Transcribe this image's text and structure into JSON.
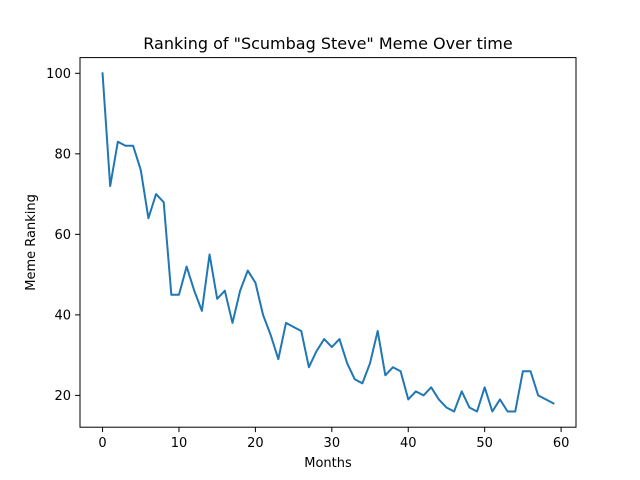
{
  "chart_data": {
    "type": "line",
    "title": "Ranking of \"Scumbag Steve\" Meme Over time",
    "xlabel": "Months",
    "ylabel": "Meme Ranking",
    "xlim": [
      -2.95,
      61.95
    ],
    "ylim": [
      12.1,
      103.9
    ],
    "xticks": [
      0,
      10,
      20,
      30,
      40,
      50,
      60
    ],
    "yticks": [
      20,
      40,
      60,
      80,
      100
    ],
    "grid": false,
    "series": [
      {
        "color": "#1f77b4",
        "x": [
          0,
          1,
          2,
          3,
          4,
          5,
          6,
          7,
          8,
          9,
          10,
          11,
          12,
          13,
          14,
          15,
          16,
          17,
          18,
          19,
          20,
          21,
          22,
          23,
          24,
          25,
          26,
          27,
          28,
          29,
          30,
          31,
          32,
          33,
          34,
          35,
          36,
          37,
          38,
          39,
          40,
          41,
          42,
          43,
          44,
          45,
          46,
          47,
          48,
          49,
          50,
          51,
          52,
          53,
          54,
          55,
          56,
          57,
          58,
          59
        ],
        "values": [
          100,
          72,
          83,
          82,
          82,
          76,
          64,
          70,
          68,
          45,
          45,
          52,
          46,
          41,
          55,
          44,
          46,
          38,
          46,
          51,
          48,
          40,
          35,
          29,
          38,
          37,
          36,
          27,
          31,
          34,
          32,
          34,
          28,
          24,
          23,
          28,
          36,
          25,
          27,
          26,
          19,
          21,
          20,
          22,
          19,
          17,
          16,
          21,
          17,
          16,
          22,
          16,
          19,
          16,
          16,
          26,
          26,
          20,
          19,
          18
        ]
      }
    ]
  }
}
